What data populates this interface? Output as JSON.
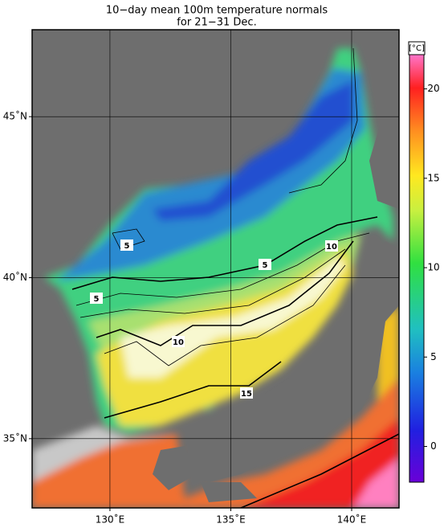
{
  "title": [
    "10−day mean 100m temperature normals",
    "for 21−31 Dec."
  ],
  "map": {
    "lon_lim": [
      126.78,
      141.96
    ],
    "lat_lim": [
      32.85,
      47.7
    ],
    "lon_ticks": [
      {
        "value": 130,
        "label": "130˚E"
      },
      {
        "value": 135,
        "label": "135˚E"
      },
      {
        "value": 140,
        "label": "140˚E"
      }
    ],
    "lat_ticks": [
      {
        "value": 35,
        "label": "35˚N"
      },
      {
        "value": 40,
        "label": "40˚N"
      },
      {
        "value": 45,
        "label": "45˚N"
      }
    ],
    "contour_labels": [
      5,
      5,
      5,
      10,
      10,
      15
    ]
  },
  "colorbar": {
    "label": "[°C]",
    "lim": [
      -2,
      22.5
    ],
    "ticks": [
      0,
      5,
      10,
      15,
      20
    ]
  }
}
